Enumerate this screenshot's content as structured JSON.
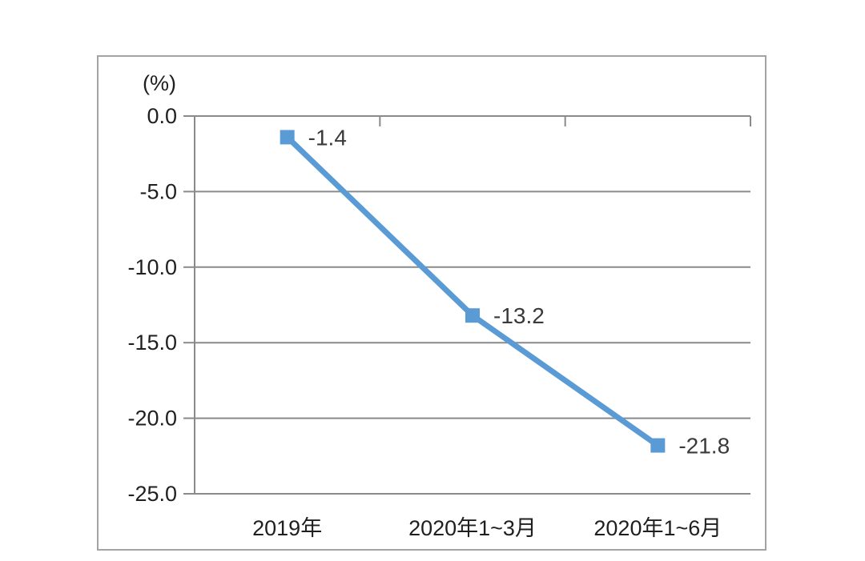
{
  "chart_data": {
    "type": "line",
    "title": "",
    "ylabel": "(%)",
    "xlabel": "",
    "categories": [
      "2019年",
      "2020年1~3月",
      "2020年1~6月"
    ],
    "series": [
      {
        "name": "",
        "values": [
          -1.4,
          -13.2,
          -21.8
        ]
      }
    ],
    "data_labels": [
      "-1.4",
      "-13.2",
      "-21.8"
    ],
    "ylim": [
      -25,
      0
    ],
    "yticks": [
      0,
      -5,
      -10,
      -15,
      -20,
      -25
    ],
    "ytick_labels": [
      "0.0",
      "-5.0",
      "-10.0",
      "-15.0",
      "-20.0",
      "-25.0"
    ],
    "grid": true,
    "legend_position": "none",
    "marker": "square"
  },
  "colors": {
    "line": "#5b9bd5",
    "marker": "#5b9bd5",
    "axis": "#8a8a8a",
    "gridline": "#8a8a8a",
    "frame_border": "#a3a3a3",
    "tick_text": "#1f1f1f",
    "data_label_text": "#3a3a3a",
    "background": "#ffffff"
  }
}
